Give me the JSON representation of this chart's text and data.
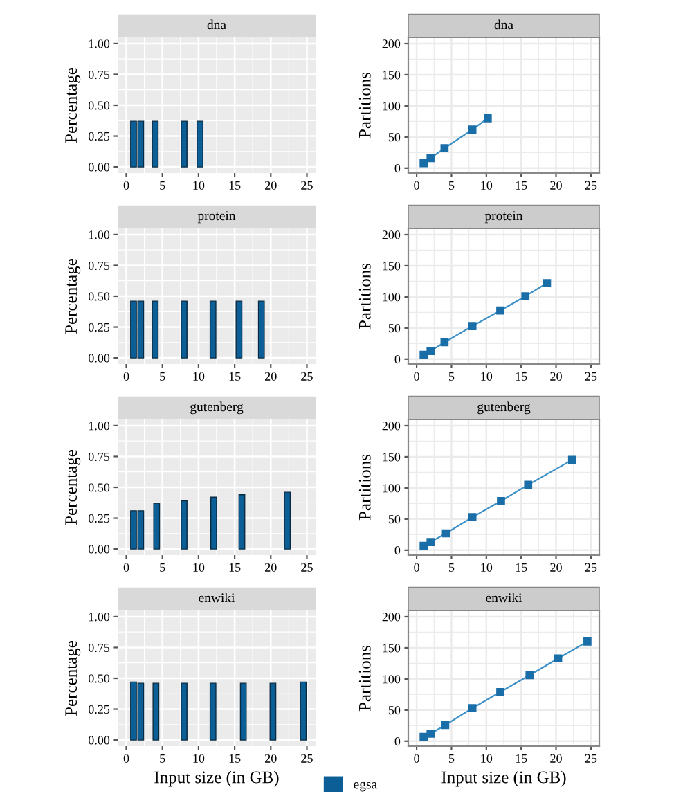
{
  "chart_data": [
    {
      "type": "bar",
      "title": "dna",
      "ylabel": "Percentage",
      "x": [
        1,
        2,
        4,
        8,
        10.2
      ],
      "values": [
        0.37,
        0.37,
        0.37,
        0.37,
        0.37
      ],
      "color": "#0b5e96",
      "xlim": [
        -1.2,
        26.2
      ],
      "ylim": [
        -0.05,
        1.05
      ],
      "xticks": [
        0,
        5,
        10,
        15,
        20,
        25
      ],
      "yticks": [
        {
          "value": 0,
          "label": "0.00"
        },
        {
          "value": 0.25,
          "label": "0.25"
        },
        {
          "value": 0.5,
          "label": "0.50"
        },
        {
          "value": 0.75,
          "label": "0.75"
        },
        {
          "value": 1,
          "label": "1.00"
        }
      ],
      "grid": true
    },
    {
      "type": "line",
      "title": "dna",
      "ylabel": "Partitions",
      "x": [
        1,
        2,
        4,
        8,
        10.2
      ],
      "values": [
        8,
        16,
        32,
        62,
        80
      ],
      "color": "#3a8fc7",
      "marker": "square",
      "xlim": [
        -1.2,
        26.2
      ],
      "ylim": [
        -8,
        210
      ],
      "xticks": [
        0,
        5,
        10,
        15,
        20,
        25
      ],
      "yticks": [
        0,
        50,
        100,
        150,
        200
      ],
      "grid": true
    },
    {
      "type": "bar",
      "title": "protein",
      "ylabel": "Percentage",
      "x": [
        1,
        2,
        4,
        8,
        12,
        15.6,
        18.7
      ],
      "values": [
        0.46,
        0.46,
        0.46,
        0.46,
        0.46,
        0.46,
        0.46
      ],
      "color": "#0b5e96",
      "xlim": [
        -1.2,
        26.2
      ],
      "ylim": [
        -0.05,
        1.05
      ],
      "xticks": [
        0,
        5,
        10,
        15,
        20,
        25
      ],
      "yticks": [
        {
          "value": 0,
          "label": "0.00"
        },
        {
          "value": 0.25,
          "label": "0.25"
        },
        {
          "value": 0.5,
          "label": "0.50"
        },
        {
          "value": 0.75,
          "label": "0.75"
        },
        {
          "value": 1,
          "label": "1.00"
        }
      ],
      "grid": true
    },
    {
      "type": "line",
      "title": "protein",
      "ylabel": "Partitions",
      "x": [
        1,
        2,
        4,
        8,
        12,
        15.6,
        18.7
      ],
      "values": [
        7,
        13,
        27,
        53,
        78,
        101,
        122
      ],
      "color": "#3a8fc7",
      "marker": "square",
      "xlim": [
        -1.2,
        26.2
      ],
      "ylim": [
        -8,
        210
      ],
      "xticks": [
        0,
        5,
        10,
        15,
        20,
        25
      ],
      "yticks": [
        0,
        50,
        100,
        150,
        200
      ],
      "grid": true
    },
    {
      "type": "bar",
      "title": "gutenberg",
      "ylabel": "Percentage",
      "x": [
        1,
        2,
        4.2,
        8,
        12.1,
        16,
        22.3
      ],
      "values": [
        0.31,
        0.31,
        0.37,
        0.39,
        0.42,
        0.44,
        0.46
      ],
      "color": "#0b5e96",
      "xlim": [
        -1.2,
        26.2
      ],
      "ylim": [
        -0.05,
        1.05
      ],
      "xticks": [
        0,
        5,
        10,
        15,
        20,
        25
      ],
      "yticks": [
        {
          "value": 0,
          "label": "0.00"
        },
        {
          "value": 0.25,
          "label": "0.25"
        },
        {
          "value": 0.5,
          "label": "0.50"
        },
        {
          "value": 0.75,
          "label": "0.75"
        },
        {
          "value": 1,
          "label": "1.00"
        }
      ],
      "grid": true
    },
    {
      "type": "line",
      "title": "gutenberg",
      "ylabel": "Partitions",
      "x": [
        1,
        2,
        4.2,
        8,
        12.1,
        16,
        22.3
      ],
      "values": [
        7,
        13,
        27,
        53,
        79,
        105,
        145
      ],
      "color": "#3a8fc7",
      "marker": "square",
      "xlim": [
        -1.2,
        26.2
      ],
      "ylim": [
        -8,
        210
      ],
      "xticks": [
        0,
        5,
        10,
        15,
        20,
        25
      ],
      "yticks": [
        0,
        50,
        100,
        150,
        200
      ],
      "grid": true
    },
    {
      "type": "bar",
      "title": "enwiki",
      "xlabel": "Input size (in GB)",
      "ylabel": "Percentage",
      "series": [
        {
          "name": "egsa",
          "color": "#0b5e96",
          "x": [
            1,
            2,
            4.1,
            8,
            12,
            16.2,
            20.3,
            24.5
          ],
          "values": [
            0.47,
            0.46,
            0.46,
            0.46,
            0.46,
            0.46,
            0.46,
            0.47
          ]
        }
      ],
      "legend": "bottom",
      "xlim": [
        -1.2,
        26.2
      ],
      "ylim": [
        -0.05,
        1.05
      ],
      "xticks": [
        0,
        5,
        10,
        15,
        20,
        25
      ],
      "yticks": [
        {
          "value": 0,
          "label": "0.00"
        },
        {
          "value": 0.25,
          "label": "0.25"
        },
        {
          "value": 0.5,
          "label": "0.50"
        },
        {
          "value": 0.75,
          "label": "0.75"
        },
        {
          "value": 1,
          "label": "1.00"
        }
      ],
      "grid": true
    },
    {
      "type": "line",
      "title": "enwiki",
      "xlabel": "Input size (in GB)",
      "ylabel": "Partitions",
      "x": [
        1,
        2,
        4.1,
        8,
        12,
        16.2,
        20.3,
        24.5
      ],
      "values": [
        7,
        12,
        26,
        53,
        79,
        106,
        133,
        160
      ],
      "color": "#3a8fc7",
      "marker": "square",
      "xlim": [
        -1.2,
        26.2
      ],
      "ylim": [
        -8,
        210
      ],
      "xticks": [
        0,
        5,
        10,
        15,
        20,
        25
      ],
      "yticks": [
        0,
        50,
        100,
        150,
        200
      ],
      "grid": true
    }
  ]
}
